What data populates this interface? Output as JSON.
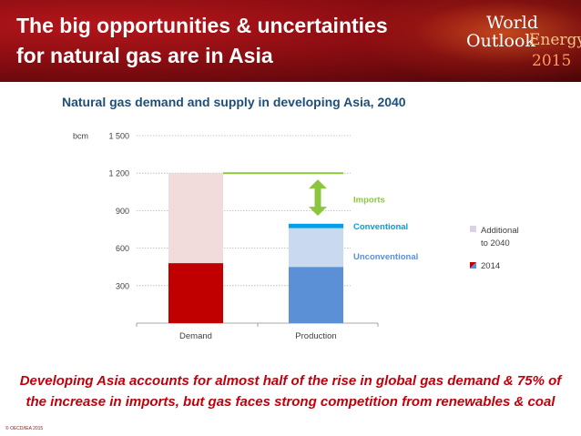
{
  "header": {
    "title_line1": "The big opportunities & uncertainties",
    "title_line2": "for natural gas are in Asia",
    "logo": {
      "world": "World",
      "energy": "Energy",
      "outlook": "Outlook",
      "year": "2015"
    }
  },
  "caption": {
    "line1": "Developing Asia accounts for almost half of the rise in global gas demand & 75% of",
    "line2": "the increase in imports, but gas faces strong competition from renewables & coal"
  },
  "copyright": "© OECD/IEA 2015",
  "chart_data": {
    "type": "bar",
    "stacked": true,
    "title": "Natural gas demand and supply in developing Asia, 2040",
    "ylabel": "bcm",
    "ylim": [
      0,
      1500
    ],
    "yticks": [
      300,
      600,
      900,
      1200,
      1500
    ],
    "ytick_labels": [
      "300",
      "600",
      "900",
      "1 200",
      "1 500"
    ],
    "categories": [
      "Demand",
      "Production"
    ],
    "grid": true,
    "segments": [
      {
        "category": "Demand",
        "kind": "2014",
        "start": 0,
        "end": 480,
        "color": "#c00000"
      },
      {
        "category": "Demand",
        "kind": "Additional to 2040",
        "start": 480,
        "end": 1200,
        "color": "#f2dcdb"
      },
      {
        "category": "Production",
        "kind": "2014",
        "start": 0,
        "end": 450,
        "color": "#5b8fd6"
      },
      {
        "category": "Production",
        "kind": "Additional to 2040",
        "start": 450,
        "end": 760,
        "color": "#c9d9ef"
      },
      {
        "category": "Production",
        "kind": "Conventional (additional)",
        "start": 760,
        "end": 795,
        "color": "#00a0e4"
      }
    ],
    "demand_line": {
      "value": 1200,
      "color": "#8cc63f"
    },
    "imports_range": [
      800,
      1200
    ],
    "annotations": [
      {
        "text": "Imports",
        "color": "#8cc63f",
        "y": 990
      },
      {
        "text": "Conventional",
        "color": "#00a0e4",
        "y": 775
      },
      {
        "text": "Unconventional",
        "color": "#5b8fd6",
        "y": 535
      }
    ],
    "legend": {
      "position": "right",
      "items": [
        {
          "label_line1": "Additional",
          "label_line2": "to 2040",
          "swatch": "light"
        },
        {
          "label_line1": "2014",
          "label_line2": "",
          "swatch": "dark"
        }
      ]
    }
  }
}
